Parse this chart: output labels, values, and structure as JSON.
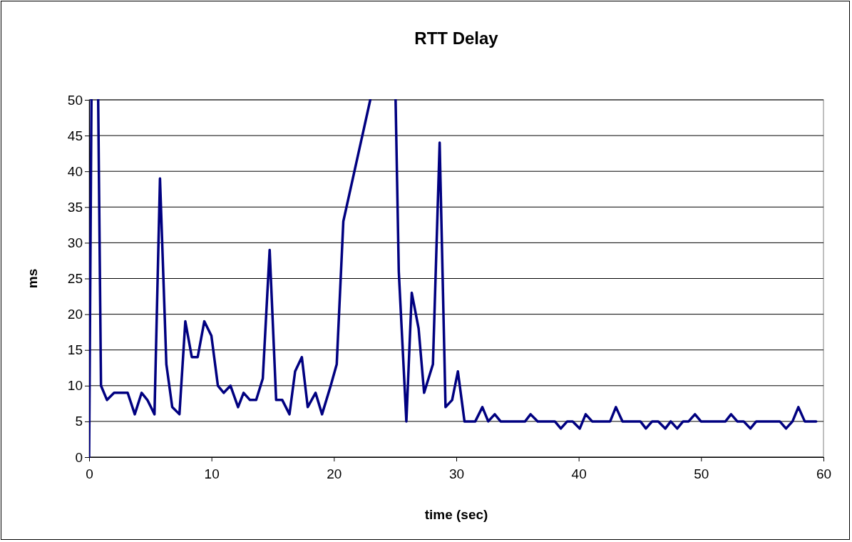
{
  "chart_data": {
    "type": "line",
    "title": "RTT Delay",
    "xlabel": "time (sec)",
    "ylabel": "ms",
    "xlim": [
      0,
      60
    ],
    "xticks": [
      0,
      10,
      20,
      30,
      40,
      50,
      60
    ],
    "ylim": [
      0,
      50
    ],
    "yticks": [
      0,
      5,
      10,
      15,
      20,
      25,
      30,
      35,
      40,
      45,
      50
    ],
    "grid": "y",
    "marker": "none",
    "line_style": "solid",
    "series": [
      {
        "color": "#000080",
        "x": [
          0,
          0.19,
          0.5,
          0.74,
          0.97,
          1.46,
          2.04,
          2.6,
          3.15,
          3.73,
          4.29,
          4.76,
          5.34,
          5.79,
          6.31,
          6.79,
          7.38,
          7.86,
          8.39,
          8.87,
          9.41,
          9.99,
          10.52,
          11.0,
          11.55,
          12.17,
          12.62,
          13.14,
          13.65,
          14.19,
          14.75,
          15.28,
          15.78,
          16.37,
          16.83,
          17.38,
          17.86,
          18.5,
          19.03,
          19.74,
          20.23,
          20.77,
          22.97,
          24.0,
          25.04,
          25.3,
          25.92,
          26.36,
          26.92,
          27.37,
          28.09,
          28.64,
          29.12,
          29.66,
          30.13,
          30.67,
          31.55,
          32.13,
          32.61,
          33.14,
          33.62,
          35.62,
          36.07,
          36.65,
          38.05,
          38.54,
          39.06,
          39.51,
          40.09,
          40.57,
          41.1,
          42.57,
          43.04,
          43.58,
          45.04,
          45.49,
          46.0,
          46.5,
          47.08,
          47.52,
          48.05,
          48.53,
          48.98,
          49.5,
          49.99,
          51.99,
          52.45,
          52.96,
          53.48,
          54.03,
          54.51,
          56.43,
          56.94,
          57.47,
          57.95,
          58.47,
          59.4
        ],
        "values": [
          0,
          50,
          null,
          50,
          10,
          8,
          9,
          9,
          9,
          6,
          9,
          8,
          6,
          39,
          13,
          7,
          6,
          19,
          14,
          14,
          19,
          17,
          10,
          9,
          10,
          7,
          9,
          8,
          8,
          11,
          29,
          8,
          8,
          6,
          12,
          14,
          7,
          9,
          6,
          10,
          13,
          33,
          50,
          null,
          50,
          26,
          5,
          23,
          18,
          9,
          13,
          44,
          7,
          8,
          12,
          5,
          5,
          7,
          5,
          6,
          5,
          5,
          6,
          5,
          5,
          4,
          5,
          5,
          4,
          6,
          5,
          5,
          7,
          5,
          5,
          4,
          5,
          5,
          4,
          5,
          4,
          5,
          5,
          6,
          5,
          5,
          6,
          5,
          5,
          4,
          5,
          5,
          4,
          5,
          7,
          5,
          5
        ]
      }
    ]
  }
}
